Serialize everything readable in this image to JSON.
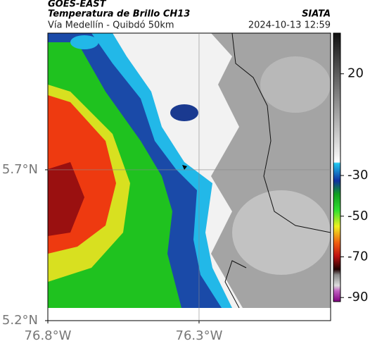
{
  "header": {
    "satellite": "GOES-EAST",
    "product": "Temperatura de Brillo CH13",
    "source": "SIATA",
    "route": "Vía Medellín - Quibdó 50km",
    "timestamp": "2024-10-13 12:59"
  },
  "map": {
    "xlim": [
      -76.8,
      -75.865
    ],
    "ylim": [
      5.2,
      6.153
    ],
    "xticks": [
      {
        "value": -76.8,
        "label": "76.8°W"
      },
      {
        "value": -76.3,
        "label": "76.3°W"
      }
    ],
    "yticks": [
      {
        "value": 5.7,
        "label": "5.7°N"
      },
      {
        "value": 5.2,
        "label": "5.2°N"
      }
    ],
    "grid": true
  },
  "colorbar": {
    "lim": [
      -92,
      40
    ],
    "ticks": [
      20,
      -30,
      -50,
      -70,
      -90
    ]
  }
}
